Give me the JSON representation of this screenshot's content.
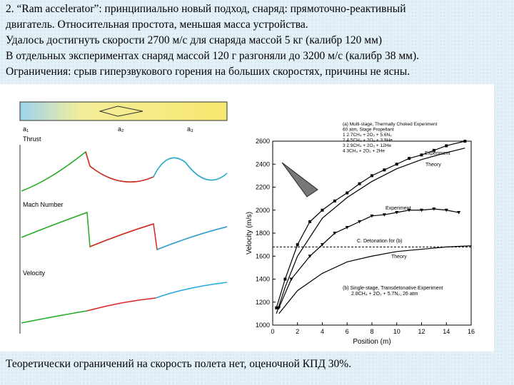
{
  "paragraphs": [
    "2.   “Ram accelerator”:  принципиально новый подход, снаряд: прямоточно-реактивный",
    "двигатель. Относительная простота, меньшая масса устройства.",
    "Удалось достигнуть скорости 2700 м/с для снаряда массой 5 кг (калибр 120 мм)",
    "В отдельных экспериментах снаряд массой 120 г разгоняли до 3200 м/с (калибр 38 мм).",
    "Ограничения: срыв гиперзвукового горения на больших скоростях, причины не ясны."
  ],
  "footer": "Теоретически ограничений на скорость полета нет, оценочной КПД 30%.",
  "left_figure": {
    "stations": [
      "a₁",
      "a₂",
      "a₃"
    ],
    "panels": [
      "Thrust",
      "Mach Number",
      "Velocity"
    ]
  },
  "chart_data": {
    "type": "line",
    "xlabel": "Position (m)",
    "ylabel": "Velocity (m/s)",
    "xlim": [
      0,
      16
    ],
    "ylim": [
      1000,
      2600
    ],
    "xticks": [
      0,
      2,
      4,
      6,
      8,
      10,
      12,
      14,
      16
    ],
    "yticks": [
      1000,
      1200,
      1400,
      1600,
      1800,
      2000,
      2200,
      2400,
      2600
    ],
    "legend_lines": [
      "(a)  Multi-stage, Thermally Choked Experiment",
      "60 atm, Stage      Propellant",
      "1      2.7CH₄ + 2O₂ + 5.6N₂",
      "2      4.5CH₄ + 2O₂ + 3.9He",
      "3      2.9CH₄ + 2O₂ + 12He",
      "4      3CH₄ + 2O₂ + 2He"
    ],
    "annotations": [
      "Experiment",
      "Theory",
      "Experiment",
      "C. Detonation for (b)",
      "Theory",
      "(b)  Single-stage, Transdetonative Experiment",
      "2.8CH₄ + 2O₂ + 5.7N₂, 26 atm"
    ],
    "series": [
      {
        "name": "Multi-stage experiment",
        "color": "#000000",
        "marker": "square",
        "x": [
          0.3,
          1,
          2,
          3,
          4,
          5,
          6,
          7,
          8,
          9,
          10,
          11,
          12,
          13,
          14,
          15.5
        ],
        "values": [
          1150,
          1400,
          1700,
          1900,
          2000,
          2080,
          2150,
          2230,
          2300,
          2350,
          2400,
          2450,
          2480,
          2520,
          2560,
          2600
        ]
      },
      {
        "name": "Multi-stage theory",
        "color": "#000000",
        "marker": "none",
        "x": [
          0.3,
          1,
          2,
          4,
          6,
          8,
          10,
          12,
          14,
          15.5
        ],
        "values": [
          1100,
          1330,
          1600,
          1930,
          2110,
          2250,
          2360,
          2440,
          2500,
          2540
        ]
      },
      {
        "name": "Single-stage experiment",
        "color": "#000000",
        "marker": "triangle",
        "x": [
          0.5,
          1.5,
          3,
          4,
          5,
          6,
          7,
          8,
          9,
          10,
          11,
          12,
          13,
          14,
          15
        ],
        "values": [
          1150,
          1400,
          1600,
          1700,
          1800,
          1850,
          1900,
          1950,
          1960,
          1980,
          2000,
          2000,
          2010,
          2000,
          1980
        ]
      },
      {
        "name": "Single-stage theory",
        "color": "#000000",
        "marker": "none",
        "x": [
          0.5,
          2,
          4,
          6,
          8,
          10,
          12,
          14,
          16
        ],
        "values": [
          1100,
          1300,
          1450,
          1550,
          1600,
          1640,
          1660,
          1680,
          1690
        ]
      }
    ]
  }
}
